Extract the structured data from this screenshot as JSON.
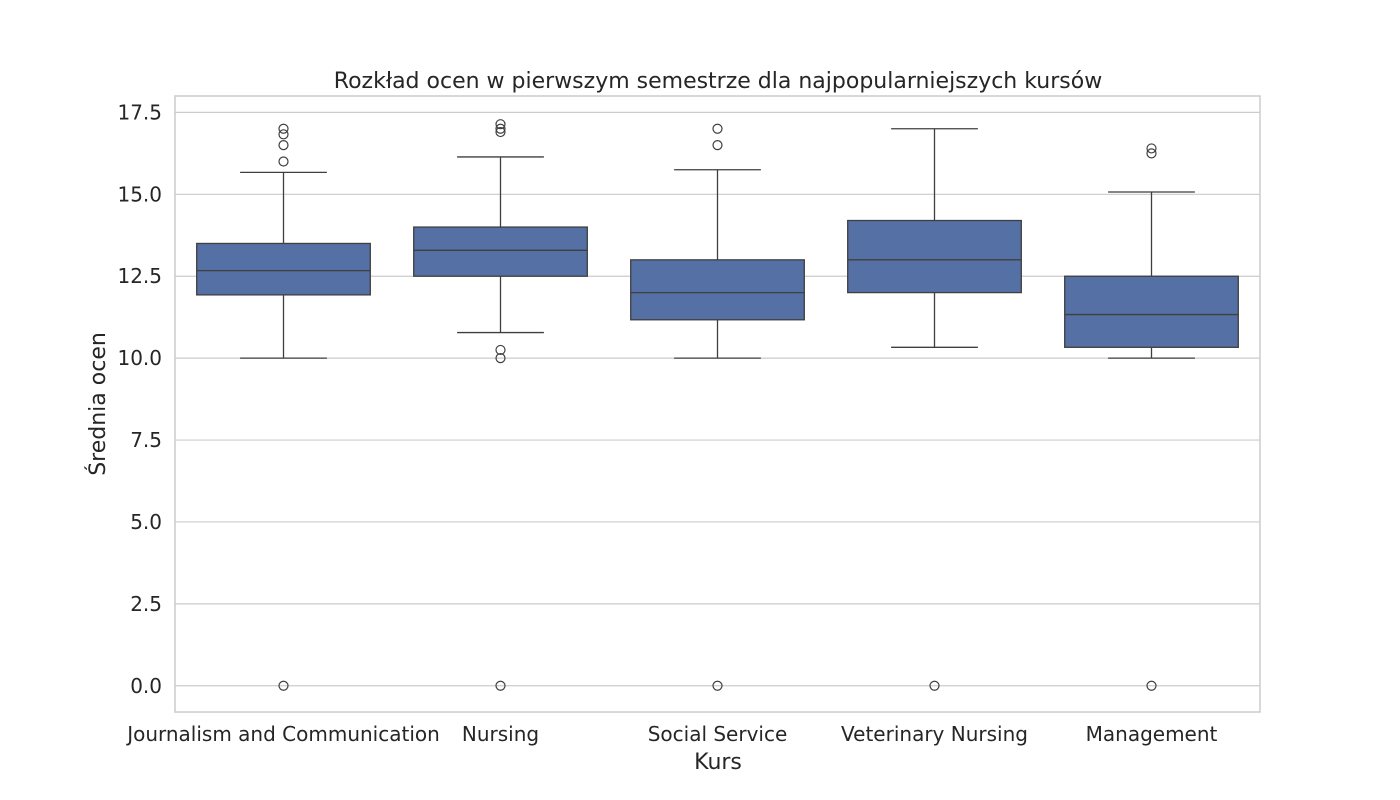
{
  "chart_data": {
    "type": "box",
    "title": "Rozkład ocen w pierwszym semestrze dla najpopularniejszych kursów",
    "xlabel": "Kurs",
    "ylabel": "Średnia ocen",
    "ylim": [
      -0.8,
      18.0
    ],
    "yticks": [
      0.0,
      2.5,
      5.0,
      7.5,
      10.0,
      12.5,
      15.0,
      17.5
    ],
    "grid": true,
    "box_color": "#5470a4",
    "categories": [
      "Journalism and Communication",
      "Nursing",
      "Social Service",
      "Veterinary Nursing",
      "Management"
    ],
    "boxes": [
      {
        "category": "Journalism and Communication",
        "whisker_low": 10.0,
        "q1": 11.93,
        "median": 12.67,
        "q3": 13.5,
        "whisker_high": 15.67,
        "fliers": [
          0,
          16.0,
          16.5,
          16.83,
          17.0
        ]
      },
      {
        "category": "Nursing",
        "whisker_low": 10.78,
        "q1": 12.5,
        "median": 13.29,
        "q3": 14.0,
        "whisker_high": 16.14,
        "fliers": [
          0,
          10.0,
          10.25,
          16.9,
          17.0,
          17.14
        ]
      },
      {
        "category": "Social Service",
        "whisker_low": 10.0,
        "q1": 11.17,
        "median": 12.0,
        "q3": 13.0,
        "whisker_high": 15.75,
        "fliers": [
          0,
          16.5,
          17.0
        ]
      },
      {
        "category": "Veterinary Nursing",
        "whisker_low": 10.33,
        "q1": 12.0,
        "median": 13.0,
        "q3": 14.2,
        "whisker_high": 17.0,
        "fliers": [
          0
        ]
      },
      {
        "category": "Management",
        "whisker_low": 10.0,
        "q1": 10.33,
        "median": 11.33,
        "q3": 12.5,
        "whisker_high": 15.07,
        "fliers": [
          0,
          16.25,
          16.4
        ]
      }
    ]
  }
}
